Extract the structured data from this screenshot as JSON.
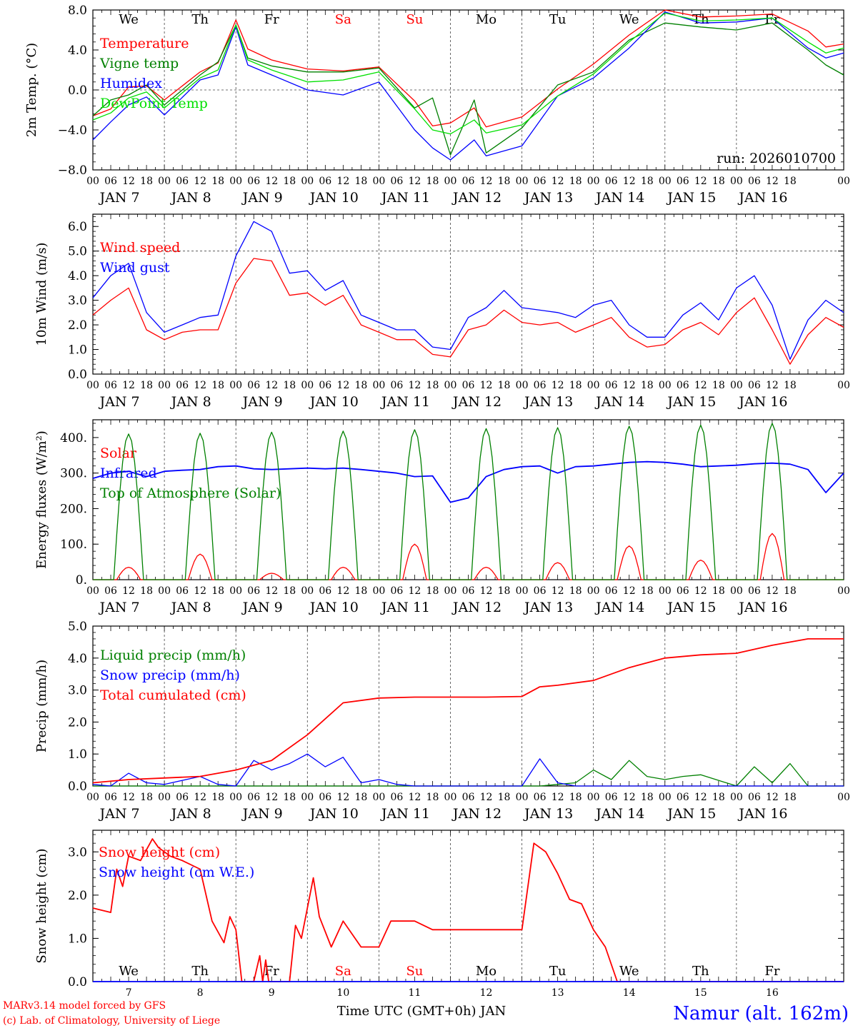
{
  "location": "Namur (alt. 162m)",
  "footer": {
    "model": "MARv3.14 model forced by GFS",
    "copyright": "(c) Lab. of Climatology, University of Liege",
    "xaxis_title": "Time UTC (GMT+0h) JAN"
  },
  "run_label": "run: 2026010700",
  "days": {
    "dates": [
      "JAN  7",
      "JAN  8",
      "JAN  9",
      "JAN 10",
      "JAN 11",
      "JAN 12",
      "JAN 13",
      "JAN 14",
      "JAN 15",
      "JAN 16"
    ],
    "short": [
      "7",
      "8",
      "9",
      "10",
      "11",
      "12",
      "13",
      "14",
      "15",
      "16"
    ],
    "weekdays": [
      "We",
      "Th",
      "Fr",
      "Sa",
      "Su",
      "Mo",
      "Tu",
      "We",
      "Th",
      "Fr"
    ],
    "weekday_colors": [
      "#000000",
      "#000000",
      "#000000",
      "#ff0000",
      "#ff0000",
      "#000000",
      "#000000",
      "#000000",
      "#000000",
      "#000000"
    ],
    "hour_ticks": [
      "00",
      "06",
      "12",
      "18"
    ],
    "final_tick": "00"
  },
  "chart_data": [
    {
      "type": "line",
      "ylabel": "2m Temp. (°C)",
      "ylim": [
        -8,
        8
      ],
      "yticks": [
        -8,
        -4,
        0,
        4,
        8
      ],
      "ytick_labels": [
        "−8.0",
        "−4.0",
        "0.0",
        "4.0",
        "8.0"
      ],
      "reference_lines": [
        0
      ],
      "x_unit": "hours since JAN 7 00 UTC",
      "series": [
        {
          "name": "Temperature",
          "color": "#ff0000",
          "x": [
            0,
            6,
            12,
            18,
            24,
            36,
            42,
            48,
            52,
            60,
            72,
            84,
            96,
            108,
            114,
            120,
            128,
            132,
            144,
            156,
            168,
            180,
            192,
            204,
            216,
            228,
            240,
            246,
            252
          ],
          "y": [
            -2.6,
            -1.9,
            0.3,
            0.4,
            -1.0,
            1.8,
            2.7,
            7.0,
            4.1,
            3.0,
            2.1,
            1.9,
            2.3,
            -1.1,
            -3.6,
            -3.3,
            -1.8,
            -3.7,
            -2.7,
            0.1,
            2.6,
            5.5,
            8.0,
            7.3,
            7.4,
            7.6,
            5.9,
            4.3,
            4.6
          ]
        },
        {
          "name": "Vigne temp",
          "color": "#008000",
          "x": [
            0,
            6,
            12,
            18,
            24,
            36,
            42,
            48,
            52,
            60,
            72,
            84,
            96,
            108,
            114,
            120,
            128,
            132,
            144,
            156,
            168,
            180,
            192,
            204,
            216,
            228,
            240,
            246,
            252
          ],
          "y": [
            -2.6,
            -1.0,
            -0.5,
            0.5,
            -1.5,
            1.5,
            2.8,
            6.5,
            3.2,
            2.4,
            1.8,
            1.8,
            2.2,
            -1.8,
            -0.8,
            -6.5,
            -1.0,
            -6.3,
            -3.8,
            0.5,
            1.8,
            5.0,
            6.7,
            6.3,
            6.0,
            6.7,
            4.0,
            2.5,
            1.5
          ]
        },
        {
          "name": "Humidex",
          "color": "#0000ff",
          "x": [
            0,
            6,
            12,
            18,
            24,
            36,
            42,
            48,
            52,
            60,
            72,
            84,
            96,
            108,
            114,
            120,
            128,
            132,
            144,
            156,
            168,
            180,
            192,
            204,
            216,
            228,
            240,
            246,
            252
          ],
          "y": [
            -5.0,
            -3.2,
            -1.5,
            -0.7,
            -2.5,
            1.0,
            1.5,
            6.3,
            2.5,
            1.5,
            0.0,
            -0.5,
            0.8,
            -4.0,
            -5.8,
            -7.0,
            -5.0,
            -6.6,
            -5.6,
            -0.6,
            1.2,
            4.2,
            7.8,
            6.7,
            6.8,
            7.2,
            4.2,
            3.2,
            3.7
          ]
        },
        {
          "name": "DewPoint Temp",
          "color": "#00e000",
          "x": [
            0,
            6,
            12,
            18,
            24,
            36,
            42,
            48,
            52,
            60,
            72,
            84,
            96,
            108,
            114,
            120,
            128,
            132,
            144,
            156,
            168,
            180,
            192,
            204,
            216,
            228,
            240,
            246,
            252
          ],
          "y": [
            -3.0,
            -2.3,
            -0.8,
            -0.2,
            -1.8,
            1.2,
            2.0,
            6.5,
            3.0,
            2.0,
            0.8,
            1.0,
            1.8,
            -1.9,
            -4.0,
            -4.4,
            -3.0,
            -4.3,
            -3.5,
            -0.6,
            1.6,
            4.8,
            7.7,
            6.9,
            7.0,
            7.2,
            4.8,
            3.7,
            4.2
          ]
        }
      ]
    },
    {
      "type": "line",
      "ylabel": "10m Wind (m/s)",
      "ylim": [
        0,
        6.5
      ],
      "yticks": [
        0,
        1,
        2,
        3,
        4,
        5,
        6
      ],
      "ytick_labels": [
        "0.0",
        "1.0",
        "2.0",
        "3.0",
        "4.0",
        "5.0",
        "6.0"
      ],
      "reference_lines": [
        5
      ],
      "series": [
        {
          "name": "Wind speed",
          "color": "#ff0000",
          "x": [
            0,
            6,
            12,
            18,
            24,
            30,
            36,
            42,
            48,
            54,
            60,
            66,
            72,
            78,
            84,
            90,
            96,
            102,
            108,
            114,
            120,
            126,
            132,
            138,
            144,
            150,
            156,
            162,
            168,
            174,
            180,
            186,
            192,
            198,
            204,
            210,
            216,
            222,
            228,
            234,
            240,
            246,
            252
          ],
          "y": [
            2.4,
            3.0,
            3.5,
            1.8,
            1.4,
            1.7,
            1.8,
            1.8,
            3.7,
            4.7,
            4.6,
            3.2,
            3.3,
            2.8,
            3.2,
            2.0,
            1.7,
            1.4,
            1.4,
            0.8,
            0.7,
            1.8,
            2.0,
            2.6,
            2.1,
            2.0,
            2.1,
            1.7,
            2.0,
            2.3,
            1.5,
            1.1,
            1.2,
            1.8,
            2.1,
            1.6,
            2.5,
            3.1,
            1.8,
            0.4,
            1.6,
            2.3,
            1.9
          ]
        },
        {
          "name": "Wind gust",
          "color": "#0000ff",
          "x": [
            0,
            6,
            12,
            18,
            24,
            30,
            36,
            42,
            48,
            54,
            60,
            66,
            72,
            78,
            84,
            90,
            96,
            102,
            108,
            114,
            120,
            126,
            132,
            138,
            144,
            150,
            156,
            162,
            168,
            174,
            180,
            186,
            192,
            198,
            204,
            210,
            216,
            222,
            228,
            234,
            240,
            246,
            252
          ],
          "y": [
            3.1,
            4.0,
            4.5,
            2.5,
            1.7,
            2.0,
            2.3,
            2.4,
            4.8,
            6.2,
            5.8,
            4.1,
            4.2,
            3.4,
            3.8,
            2.4,
            2.1,
            1.8,
            1.8,
            1.1,
            1.0,
            2.3,
            2.7,
            3.4,
            2.7,
            2.6,
            2.5,
            2.3,
            2.8,
            3.0,
            2.0,
            1.5,
            1.5,
            2.4,
            2.9,
            2.2,
            3.5,
            4.0,
            2.8,
            0.6,
            2.2,
            3.0,
            2.5
          ]
        }
      ]
    },
    {
      "type": "line",
      "ylabel": "Energy fluxes (W/m²)",
      "ylim": [
        0,
        450
      ],
      "yticks": [
        0,
        100,
        200,
        300,
        400
      ],
      "ytick_labels": [
        "0.",
        "100.",
        "200.",
        "300.",
        "400."
      ],
      "series": [
        {
          "name": "Solar",
          "color": "#ff0000",
          "peaks": [
            35,
            72,
            18,
            35,
            100,
            35,
            48,
            95,
            55,
            130
          ]
        },
        {
          "name": "Infrared",
          "color": "#0000ff",
          "x": [
            0,
            6,
            12,
            18,
            24,
            30,
            36,
            42,
            48,
            54,
            60,
            66,
            72,
            78,
            84,
            90,
            96,
            102,
            108,
            114,
            120,
            126,
            132,
            138,
            144,
            150,
            156,
            162,
            168,
            174,
            180,
            186,
            192,
            198,
            204,
            210,
            216,
            222,
            228,
            234,
            240,
            246,
            252
          ],
          "y": [
            285,
            300,
            305,
            290,
            305,
            308,
            310,
            318,
            320,
            312,
            310,
            312,
            314,
            312,
            314,
            310,
            305,
            300,
            290,
            292,
            218,
            230,
            290,
            310,
            318,
            320,
            300,
            318,
            320,
            325,
            330,
            332,
            330,
            325,
            318,
            320,
            322,
            326,
            328,
            325,
            310,
            245,
            300
          ]
        },
        {
          "name": "Top of Atmosphere (Solar)",
          "color": "#008000",
          "peaks": [
            410,
            412,
            415,
            418,
            422,
            425,
            428,
            432,
            435,
            440
          ]
        }
      ]
    },
    {
      "type": "line",
      "ylabel": "Precip (mm/h)",
      "ylim": [
        0,
        5
      ],
      "yticks": [
        0,
        1,
        2,
        3,
        4,
        5
      ],
      "ytick_labels": [
        "0.0",
        "1.0",
        "2.0",
        "3.0",
        "4.0",
        "5.0"
      ],
      "series": [
        {
          "name": "Liquid precip (mm/h)",
          "color": "#008000",
          "x": [
            0,
            150,
            156,
            162,
            168,
            174,
            180,
            186,
            192,
            198,
            204,
            216,
            222,
            228,
            234,
            240,
            252
          ],
          "y": [
            0,
            0,
            0.05,
            0.1,
            0.5,
            0.2,
            0.8,
            0.3,
            0.2,
            0.3,
            0.35,
            0,
            0.6,
            0.1,
            0.7,
            0,
            0
          ]
        },
        {
          "name": "Snow precip (mm/h)",
          "color": "#0000ff",
          "x": [
            0,
            6,
            12,
            18,
            24,
            36,
            42,
            48,
            54,
            60,
            66,
            72,
            78,
            84,
            90,
            96,
            102,
            108,
            144,
            150,
            156,
            162,
            252
          ],
          "y": [
            0.05,
            0,
            0.4,
            0.1,
            0.05,
            0.3,
            0.05,
            0,
            0.8,
            0.5,
            0.7,
            1.0,
            0.6,
            0.9,
            0.1,
            0.2,
            0.05,
            0,
            0,
            0.85,
            0.1,
            0,
            0
          ]
        },
        {
          "name": "Total cumulated (cm)",
          "color": "#ff0000",
          "x": [
            0,
            12,
            24,
            36,
            48,
            60,
            72,
            84,
            96,
            108,
            120,
            132,
            144,
            150,
            156,
            168,
            180,
            192,
            204,
            216,
            228,
            240,
            252
          ],
          "y": [
            0.1,
            0.2,
            0.25,
            0.3,
            0.5,
            0.8,
            1.6,
            2.6,
            2.75,
            2.78,
            2.78,
            2.78,
            2.8,
            3.1,
            3.15,
            3.3,
            3.7,
            4.0,
            4.1,
            4.15,
            4.4,
            4.6,
            4.6
          ]
        }
      ]
    },
    {
      "type": "line",
      "ylabel": "Snow height (cm)",
      "ylim": [
        0,
        3.5
      ],
      "yticks": [
        0,
        1,
        2,
        3
      ],
      "ytick_labels": [
        "0.0",
        "1.0",
        "2.0",
        "3.0"
      ],
      "series": [
        {
          "name": "Snow height (cm)",
          "color": "#ff0000",
          "x": [
            0,
            6,
            8,
            10,
            12,
            16,
            20,
            22,
            26,
            30,
            36,
            40,
            44,
            46,
            48,
            50,
            54,
            56,
            57,
            58,
            59,
            60,
            62,
            66,
            68,
            70,
            74,
            76,
            80,
            84,
            88,
            90,
            96,
            100,
            104,
            108,
            114,
            120,
            132,
            144,
            148,
            152,
            156,
            160,
            164,
            168,
            172,
            176,
            180,
            252
          ],
          "y": [
            1.7,
            1.6,
            2.6,
            2.2,
            2.9,
            2.8,
            3.3,
            3.1,
            2.9,
            2.8,
            2.6,
            1.4,
            0.9,
            1.5,
            1.2,
            0,
            0,
            0.6,
            0,
            0.5,
            0,
            0,
            0,
            0,
            1.3,
            1.0,
            2.4,
            1.5,
            0.8,
            1.4,
            1.0,
            0.8,
            0.8,
            1.4,
            1.4,
            1.4,
            1.2,
            1.2,
            1.2,
            1.2,
            3.2,
            3.0,
            2.5,
            1.9,
            1.8,
            1.2,
            0.8,
            0,
            0,
            0
          ]
        },
        {
          "name": "Snow height (cm W.E.)",
          "color": "#0000ff",
          "x": [
            0,
            252
          ],
          "y": [
            0,
            0
          ]
        }
      ]
    }
  ]
}
